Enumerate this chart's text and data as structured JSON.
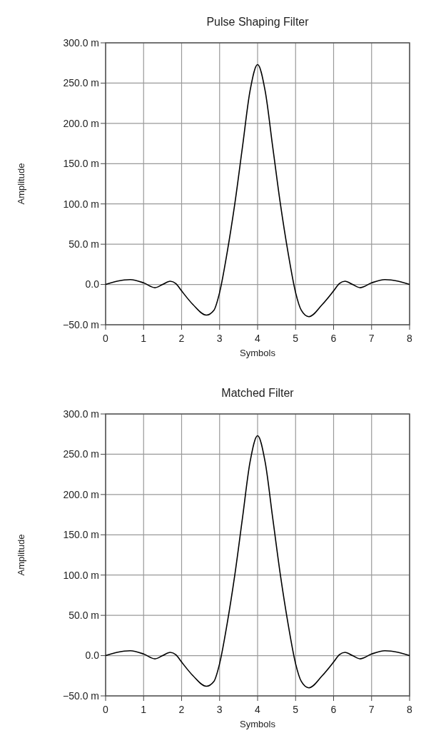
{
  "chart_data": [
    {
      "type": "line",
      "title": "Pulse Shaping Filter",
      "xlabel": "Symbols",
      "ylabel": "Amplitude",
      "xlim": [
        0,
        8
      ],
      "xticks": [
        0,
        1,
        2,
        3,
        4,
        5,
        6,
        7,
        8
      ],
      "ylim": [
        -50,
        300
      ],
      "yticks": [
        {
          "value": -50,
          "label": "−50.0 m"
        },
        {
          "value": 0,
          "label": "0.0"
        },
        {
          "value": 50,
          "label": "50.0 m"
        },
        {
          "value": 100,
          "label": "100.0 m"
        },
        {
          "value": 150,
          "label": "150.0 m"
        },
        {
          "value": 200,
          "label": "200.0 m"
        },
        {
          "value": 250,
          "label": "250.0 m"
        },
        {
          "value": 300,
          "label": "300.0 m"
        }
      ],
      "grid": true,
      "series": [
        {
          "color": "#000000",
          "x": [
            0,
            0.3,
            0.65,
            1.0,
            1.3,
            1.5,
            1.7,
            1.85,
            2.0,
            2.3,
            2.65,
            2.85,
            3.0,
            3.2,
            3.4,
            3.6,
            3.8,
            4.0,
            4.2,
            4.4,
            4.6,
            4.8,
            5.0,
            5.15,
            5.35,
            5.7,
            6.0,
            6.15,
            6.3,
            6.5,
            6.7,
            7.0,
            7.35,
            7.7,
            8.0
          ],
          "values": [
            0,
            4,
            6,
            2,
            -4,
            0,
            4,
            1,
            -8,
            -25,
            -38,
            -32,
            -10,
            40,
            100,
            170,
            240,
            273,
            240,
            170,
            100,
            40,
            -10,
            -32,
            -40,
            -25,
            -8,
            1,
            4,
            0,
            -4,
            2,
            6,
            4,
            0
          ]
        }
      ]
    },
    {
      "type": "line",
      "title": "Matched Filter",
      "xlabel": "Symbols",
      "ylabel": "Amplitude",
      "xlim": [
        0,
        8
      ],
      "xticks": [
        0,
        1,
        2,
        3,
        4,
        5,
        6,
        7,
        8
      ],
      "ylim": [
        -50,
        300
      ],
      "yticks": [
        {
          "value": -50,
          "label": "−50.0 m"
        },
        {
          "value": 0,
          "label": "0.0"
        },
        {
          "value": 50,
          "label": "50.0 m"
        },
        {
          "value": 100,
          "label": "100.0 m"
        },
        {
          "value": 150,
          "label": "150.0 m"
        },
        {
          "value": 200,
          "label": "200.0 m"
        },
        {
          "value": 250,
          "label": "250.0 m"
        },
        {
          "value": 300,
          "label": "300.0 m"
        }
      ],
      "grid": true,
      "series": [
        {
          "color": "#000000",
          "x": [
            0,
            0.3,
            0.65,
            1.0,
            1.3,
            1.5,
            1.7,
            1.85,
            2.0,
            2.3,
            2.65,
            2.85,
            3.0,
            3.2,
            3.4,
            3.6,
            3.8,
            4.0,
            4.2,
            4.4,
            4.6,
            4.8,
            5.0,
            5.15,
            5.35,
            5.7,
            6.0,
            6.15,
            6.3,
            6.5,
            6.7,
            7.0,
            7.35,
            7.7,
            8.0
          ],
          "values": [
            0,
            4,
            6,
            2,
            -4,
            0,
            4,
            1,
            -8,
            -25,
            -38,
            -32,
            -10,
            40,
            100,
            170,
            240,
            273,
            240,
            170,
            100,
            40,
            -10,
            -32,
            -40,
            -25,
            -8,
            1,
            4,
            0,
            -4,
            2,
            6,
            4,
            0
          ]
        }
      ]
    }
  ]
}
